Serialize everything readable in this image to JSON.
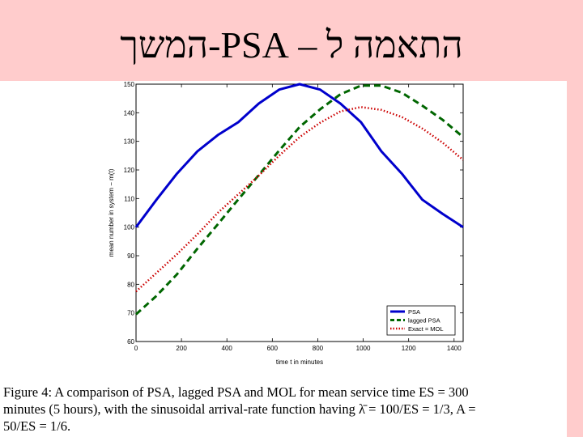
{
  "slide": {
    "title": "התאמה ל – PSA-המשך"
  },
  "caption": {
    "line1": "Figure 4:  A comparison of PSA, lagged PSA and MOL for mean service time ES = 300",
    "line2": "minutes (5 hours), with the sinusoidal arrival-rate function having λ̄ = 100/ES = 1/3, A =",
    "line3": "50/ES = 1/6."
  },
  "chart_data": {
    "type": "line",
    "title": "",
    "xlabel": "time t in minutes",
    "ylabel": "mean number in system − m(t)",
    "xlim": [
      0,
      1440
    ],
    "ylim": [
      60,
      150
    ],
    "xticks": [
      0,
      200,
      400,
      600,
      800,
      1000,
      1200,
      1400
    ],
    "yticks": [
      60,
      70,
      80,
      90,
      100,
      110,
      120,
      130,
      140,
      150
    ],
    "grid": false,
    "legend_position": "bottom-right",
    "series": [
      {
        "name": "PSA",
        "color": "#0000cc",
        "style": "solid",
        "x": [
          0,
          90,
          180,
          270,
          360,
          450,
          540,
          630,
          720,
          810,
          900,
          990,
          1080,
          1170,
          1260,
          1350,
          1440
        ],
        "y": [
          100,
          109.6,
          118.7,
          126.5,
          132.2,
          136.7,
          143.2,
          148.1,
          150,
          148.1,
          143.2,
          136.7,
          126.5,
          118.7,
          109.6,
          104.6,
          100
        ]
      },
      {
        "name": "lagged PSA",
        "color": "#006600",
        "style": "dashed",
        "x": [
          0,
          90,
          180,
          270,
          360,
          450,
          540,
          630,
          720,
          810,
          900,
          990,
          1080,
          1170,
          1260,
          1350,
          1440
        ],
        "y": [
          69.5,
          76,
          83.5,
          92.5,
          101,
          109.7,
          118.2,
          126.8,
          135,
          141.2,
          146.5,
          149.5,
          149.5,
          147,
          142.5,
          137.5,
          131.5
        ]
      },
      {
        "name": "Exact = MOL",
        "color": "#cc0000",
        "style": "dotted",
        "x": [
          0,
          90,
          180,
          270,
          360,
          450,
          540,
          630,
          720,
          810,
          900,
          990,
          1080,
          1170,
          1260,
          1350,
          1440
        ],
        "y": [
          77.5,
          84,
          90.5,
          97.5,
          105,
          111.5,
          118,
          125,
          131.5,
          136.5,
          140.5,
          142,
          141,
          138.5,
          134.5,
          129.5,
          123.5
        ]
      }
    ]
  }
}
